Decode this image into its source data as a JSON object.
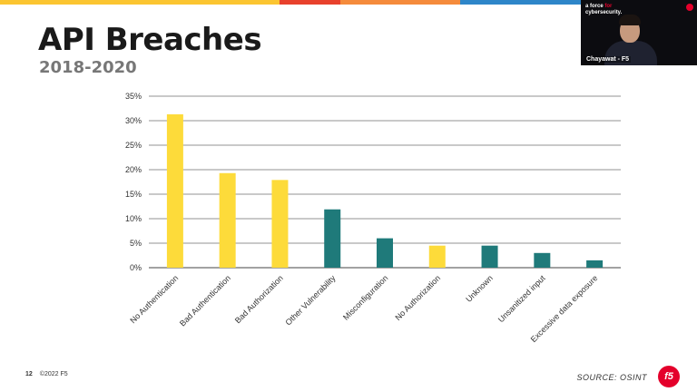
{
  "title": "API Breaches",
  "subtitle": "2018-2020",
  "footer": {
    "page_number": "12",
    "copyright": "©2022 F5",
    "source": "SOURCE: OSINT",
    "logo": "f5"
  },
  "webcam": {
    "speaker_name": "Chayawat - F5",
    "tagline_1": "a force ",
    "tagline_highlight": "for",
    "tagline_2": "cybersecurity."
  },
  "colors": {
    "yellow": "#fddb3a",
    "teal": "#1f7a7a",
    "stripe": [
      "#fbc531",
      "#e8412c",
      "#f58b3c",
      "#2e86c9",
      "#8c8c8c"
    ]
  },
  "chart_data": {
    "type": "bar",
    "categories": [
      "No Authentication",
      "Bad Authentication",
      "Bad Authorization",
      "Other Vulnerability",
      "Misconfiguration",
      "No Authorization",
      "Unknown",
      "Unsanitized input",
      "Excessive data exposure"
    ],
    "values": [
      31.3,
      19.3,
      17.9,
      11.9,
      6.0,
      4.5,
      4.5,
      3.0,
      1.5
    ],
    "bar_colors": [
      "#fddb3a",
      "#fddb3a",
      "#fddb3a",
      "#1f7a7a",
      "#1f7a7a",
      "#fddb3a",
      "#1f7a7a",
      "#1f7a7a",
      "#1f7a7a"
    ],
    "ylim": [
      0,
      35
    ],
    "yticks": [
      0,
      5,
      10,
      15,
      20,
      25,
      30,
      35
    ],
    "ytick_labels": [
      "0%",
      "5%",
      "10%",
      "15%",
      "20%",
      "25%",
      "30%",
      "35%"
    ],
    "grid": true,
    "legend": "none"
  }
}
